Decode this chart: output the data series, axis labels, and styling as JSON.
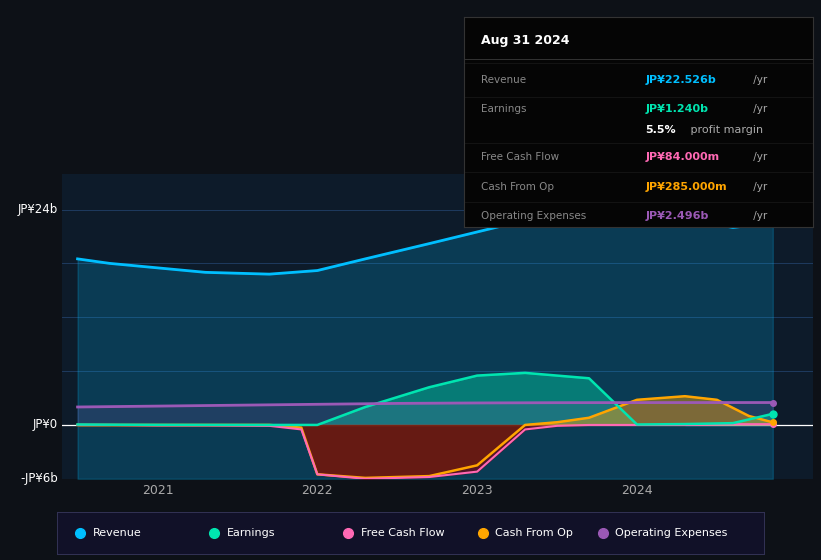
{
  "bg_color": "#0d1117",
  "chart_bg": "#0d1b2a",
  "ylim": [
    -6000000000.0,
    28000000000.0
  ],
  "revenue_x": [
    2020.5,
    2020.7,
    2021.0,
    2021.3,
    2021.7,
    2022.0,
    2022.3,
    2022.7,
    2023.0,
    2023.3,
    2023.7,
    2024.0,
    2024.3,
    2024.6,
    2024.85
  ],
  "revenue_y": [
    18500000000.0,
    18000000000.0,
    17500000000.0,
    17000000000.0,
    16800000000.0,
    17200000000.0,
    18500000000.0,
    20200000000.0,
    21500000000.0,
    22800000000.0,
    24500000000.0,
    24200000000.0,
    23000000000.0,
    22000000000.0,
    22526000000.0
  ],
  "earnings_x": [
    2020.5,
    2020.7,
    2021.0,
    2021.3,
    2021.7,
    2022.0,
    2022.3,
    2022.7,
    2023.0,
    2023.3,
    2023.7,
    2024.0,
    2024.3,
    2024.6,
    2024.85
  ],
  "earnings_y": [
    50000000.0,
    30000000.0,
    10000000.0,
    5000000.0,
    0.0,
    0.0,
    2000000000.0,
    4200000000.0,
    5500000000.0,
    5800000000.0,
    5200000000.0,
    50000000.0,
    100000000.0,
    200000000.0,
    1240000000.0
  ],
  "fcf_x": [
    2020.5,
    2020.7,
    2021.0,
    2021.3,
    2021.7,
    2021.9,
    2022.0,
    2022.3,
    2022.7,
    2023.0,
    2023.3,
    2023.5,
    2023.7,
    2024.0,
    2024.3,
    2024.6,
    2024.85
  ],
  "fcf_y": [
    0.0,
    0.0,
    -50000000.0,
    -50000000.0,
    -100000000.0,
    -500000000.0,
    -5500000000.0,
    -6000000000.0,
    -5800000000.0,
    -5200000000.0,
    -500000000.0,
    -100000000.0,
    0.0,
    0.0,
    0.0,
    84000000.0,
    84000000.0
  ],
  "cashop_x": [
    2020.5,
    2020.7,
    2021.0,
    2021.3,
    2021.7,
    2021.9,
    2022.0,
    2022.3,
    2022.7,
    2023.0,
    2023.3,
    2023.5,
    2023.7,
    2024.0,
    2024.3,
    2024.5,
    2024.7,
    2024.85
  ],
  "cashop_y": [
    0.0,
    0.0,
    0.0,
    0.0,
    0.0,
    -300000000.0,
    -5500000000.0,
    -5900000000.0,
    -5700000000.0,
    -4500000000.0,
    0.0,
    300000000.0,
    800000000.0,
    2800000000.0,
    3200000000.0,
    2800000000.0,
    1000000000.0,
    285000000.0
  ],
  "opex_x": [
    2020.5,
    2021.0,
    2021.5,
    2022.0,
    2022.5,
    2023.0,
    2023.5,
    2024.0,
    2024.5,
    2024.85
  ],
  "opex_y": [
    2000000000.0,
    2100000000.0,
    2200000000.0,
    2300000000.0,
    2400000000.0,
    2450000000.0,
    2480000000.0,
    2490000000.0,
    2495000000.0,
    2496000000.0
  ],
  "revenue_color": "#00bfff",
  "earnings_color": "#00e5b0",
  "fcf_color": "#ff69b4",
  "cashop_color": "#ffa500",
  "opex_color": "#9b59b6",
  "grid_color": "#1e3a5f",
  "zero_line_color": "#ffffff",
  "y_label_top": "JP¥24b",
  "y_label_zero": "JP¥0",
  "y_label_bottom": "-JP¥6b",
  "legend_items": [
    {
      "color": "#00bfff",
      "label": "Revenue"
    },
    {
      "color": "#00e5b0",
      "label": "Earnings"
    },
    {
      "color": "#ff69b4",
      "label": "Free Cash Flow"
    },
    {
      "color": "#ffa500",
      "label": "Cash From Op"
    },
    {
      "color": "#9b59b6",
      "label": "Operating Expenses"
    }
  ],
  "tooltip_title": "Aug 31 2024",
  "tooltip_rows": [
    {
      "label": "Revenue",
      "value": "JP¥22.526b",
      "suffix": " /yr",
      "color": "#00bfff",
      "sublabel": null,
      "subvalue": null
    },
    {
      "label": "Earnings",
      "value": "JP¥1.240b",
      "suffix": " /yr",
      "color": "#00e5b0",
      "sublabel": null,
      "subvalue": "5.5% profit margin"
    },
    {
      "label": "Free Cash Flow",
      "value": "JP¥84.000m",
      "suffix": " /yr",
      "color": "#ff69b4",
      "sublabel": null,
      "subvalue": null
    },
    {
      "label": "Cash From Op",
      "value": "JP¥285.000m",
      "suffix": " /yr",
      "color": "#ffa500",
      "sublabel": null,
      "subvalue": null
    },
    {
      "label": "Operating Expenses",
      "value": "JP¥2.496b",
      "suffix": " /yr",
      "color": "#9b59b6",
      "sublabel": null,
      "subvalue": null
    }
  ]
}
